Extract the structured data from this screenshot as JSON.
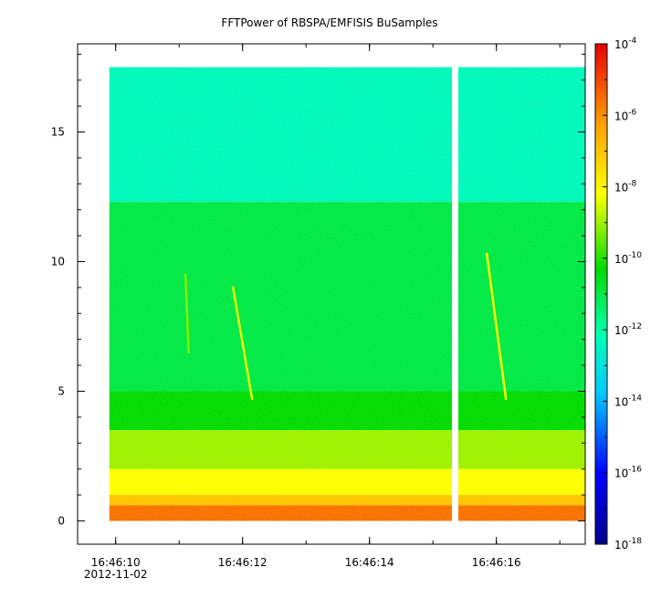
{
  "chart_data": {
    "type": "heatmap",
    "title": "FFTPower of RBSPA/EMFISIS  BuSamples",
    "xlabel": "",
    "ylabel": "",
    "x_tick_labels": [
      "16:46:10",
      "16:46:12",
      "16:46:14",
      "16:46:16"
    ],
    "x_date_label": "2012-11-02",
    "x_range": [
      "16:46:09.4",
      "16:46:17.4"
    ],
    "x_ticks_minor_every_seconds": 1,
    "y_ticks": [
      0,
      5,
      10,
      15
    ],
    "ylim": [
      -0.9,
      18.4
    ],
    "data_extent": {
      "x_start": "16:46:09.9",
      "x_end": "16:46:17.4",
      "y_min": 0,
      "y_max": 17.5,
      "gap": [
        "16:46:15.3",
        "16:46:15.4"
      ]
    },
    "colorbar": {
      "scale": "log",
      "range": [
        1e-18,
        0.0001
      ],
      "tick_exponents": [
        "-4",
        "-6",
        "-8",
        "-10",
        "-12",
        "-14",
        "-16",
        "-18"
      ],
      "tick_values": [
        0.0001,
        1e-06,
        1e-08,
        1e-10,
        1e-12,
        1e-14,
        1e-16,
        1e-18
      ],
      "tick_base": "10"
    },
    "bands": [
      {
        "y_from": 12.3,
        "y_to": 17.5,
        "log_power": -12.3
      },
      {
        "y_from": 5.0,
        "y_to": 12.3,
        "log_power": -11.0
      },
      {
        "y_from": 3.5,
        "y_to": 5.0,
        "log_power": -10.3
      },
      {
        "y_from": 2.0,
        "y_to": 3.5,
        "log_power": -9.0
      },
      {
        "y_from": 1.0,
        "y_to": 2.0,
        "log_power": -8.2
      },
      {
        "y_from": 0.6,
        "y_to": 1.0,
        "log_power": -7.0
      },
      {
        "y_from": 0.0,
        "y_to": 0.6,
        "log_power": -5.6
      }
    ],
    "features": [
      {
        "x_start": "16:46:11.1",
        "x_end": "16:46:11.15",
        "y_start": 9.5,
        "y_end": 6.5,
        "log_power": -9.2
      },
      {
        "x_start": "16:46:11.85",
        "x_end": "16:46:12.15",
        "y_start": 9.0,
        "y_end": 4.7,
        "log_power": -8.4
      },
      {
        "x_start": "16:46:15.85",
        "x_end": "16:46:16.15",
        "y_start": 10.3,
        "y_end": 4.7,
        "log_power": -8.2
      }
    ]
  }
}
